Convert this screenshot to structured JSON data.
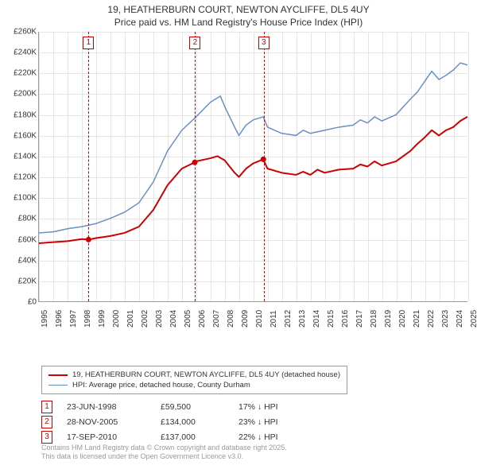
{
  "title_line1": "19, HEATHERBURN COURT, NEWTON AYCLIFFE, DL5 4UY",
  "title_line2": "Price paid vs. HM Land Registry's House Price Index (HPI)",
  "chart": {
    "type": "line",
    "background_color": "#ffffff",
    "grid_color": "#e5e5e5",
    "axis_color": "#999999",
    "text_color": "#333333",
    "label_fontsize": 10,
    "x": {
      "min": 1995,
      "max": 2025,
      "ticks": [
        1995,
        1996,
        1997,
        1998,
        1999,
        2000,
        2001,
        2002,
        2003,
        2004,
        2005,
        2006,
        2007,
        2008,
        2009,
        2010,
        2011,
        2012,
        2013,
        2014,
        2015,
        2016,
        2017,
        2018,
        2019,
        2020,
        2021,
        2022,
        2023,
        2024,
        2025
      ]
    },
    "y": {
      "min": 0,
      "max": 260000,
      "step": 20000,
      "format_prefix": "£",
      "format_suffix": "K",
      "format_divisor": 1000,
      "labels": [
        "£0",
        "£20K",
        "£40K",
        "£60K",
        "£80K",
        "£100K",
        "£120K",
        "£140K",
        "£160K",
        "£180K",
        "£200K",
        "£220K",
        "£240K",
        "£260K"
      ]
    },
    "series": [
      {
        "name": "19, HEATHERBURN COURT, NEWTON AYCLIFFE, DL5 4UY (detached house)",
        "color": "#cc0000",
        "line_width": 2,
        "points": [
          [
            1995,
            56000
          ],
          [
            1996,
            57000
          ],
          [
            1997,
            58000
          ],
          [
            1998,
            60000
          ],
          [
            1998.5,
            59500
          ],
          [
            1999,
            61000
          ],
          [
            2000,
            63000
          ],
          [
            2001,
            66000
          ],
          [
            2002,
            72000
          ],
          [
            2003,
            88000
          ],
          [
            2004,
            112000
          ],
          [
            2005,
            128000
          ],
          [
            2005.9,
            134000
          ],
          [
            2006,
            135000
          ],
          [
            2007,
            138000
          ],
          [
            2007.5,
            140000
          ],
          [
            2008,
            136000
          ],
          [
            2008.7,
            124000
          ],
          [
            2009,
            120000
          ],
          [
            2009.5,
            128000
          ],
          [
            2010,
            133000
          ],
          [
            2010.7,
            137000
          ],
          [
            2011,
            128000
          ],
          [
            2012,
            124000
          ],
          [
            2013,
            122000
          ],
          [
            2013.5,
            125000
          ],
          [
            2014,
            122000
          ],
          [
            2014.5,
            127000
          ],
          [
            2015,
            124000
          ],
          [
            2016,
            127000
          ],
          [
            2017,
            128000
          ],
          [
            2017.5,
            132000
          ],
          [
            2018,
            130000
          ],
          [
            2018.5,
            135000
          ],
          [
            2019,
            131000
          ],
          [
            2020,
            135000
          ],
          [
            2021,
            145000
          ],
          [
            2021.5,
            152000
          ],
          [
            2022,
            158000
          ],
          [
            2022.5,
            165000
          ],
          [
            2023,
            160000
          ],
          [
            2023.5,
            165000
          ],
          [
            2024,
            168000
          ],
          [
            2024.5,
            174000
          ],
          [
            2025,
            178000
          ]
        ]
      },
      {
        "name": "HPI: Average price, detached house, County Durham",
        "color": "#6a8fc4",
        "line_width": 1.5,
        "points": [
          [
            1995,
            66000
          ],
          [
            1996,
            67000
          ],
          [
            1997,
            70000
          ],
          [
            1998,
            72000
          ],
          [
            1999,
            75000
          ],
          [
            2000,
            80000
          ],
          [
            2001,
            86000
          ],
          [
            2002,
            95000
          ],
          [
            2003,
            115000
          ],
          [
            2004,
            145000
          ],
          [
            2005,
            165000
          ],
          [
            2006,
            178000
          ],
          [
            2007,
            192000
          ],
          [
            2007.7,
            198000
          ],
          [
            2008,
            188000
          ],
          [
            2008.7,
            168000
          ],
          [
            2009,
            160000
          ],
          [
            2009.5,
            170000
          ],
          [
            2010,
            175000
          ],
          [
            2010.7,
            178000
          ],
          [
            2011,
            168000
          ],
          [
            2012,
            162000
          ],
          [
            2013,
            160000
          ],
          [
            2013.5,
            165000
          ],
          [
            2014,
            162000
          ],
          [
            2015,
            165000
          ],
          [
            2016,
            168000
          ],
          [
            2017,
            170000
          ],
          [
            2017.5,
            175000
          ],
          [
            2018,
            172000
          ],
          [
            2018.5,
            178000
          ],
          [
            2019,
            174000
          ],
          [
            2020,
            180000
          ],
          [
            2021,
            195000
          ],
          [
            2021.5,
            202000
          ],
          [
            2022,
            212000
          ],
          [
            2022.5,
            222000
          ],
          [
            2023,
            214000
          ],
          [
            2023.5,
            218000
          ],
          [
            2024,
            223000
          ],
          [
            2024.5,
            230000
          ],
          [
            2025,
            228000
          ]
        ]
      }
    ],
    "events": [
      {
        "num": "1",
        "x": 1998.47,
        "marker_y": 59500
      },
      {
        "num": "2",
        "x": 2005.91,
        "marker_y": 134000
      },
      {
        "num": "3",
        "x": 2010.71,
        "marker_y": 137000
      }
    ],
    "event_line_color": "#cc0000",
    "event_box_border": "#cc0000",
    "marker_color": "#cc0000",
    "marker_radius": 3.5
  },
  "legend": [
    {
      "label": "19, HEATHERBURN COURT, NEWTON AYCLIFFE, DL5 4UY (detached house)",
      "color": "#cc0000",
      "width": 2
    },
    {
      "label": "HPI: Average price, detached house, County Durham",
      "color": "#6a8fc4",
      "width": 1.5
    }
  ],
  "events_table": [
    {
      "num": "1",
      "date": "23-JUN-1998",
      "price": "£59,500",
      "diff": "17% ↓ HPI"
    },
    {
      "num": "2",
      "date": "28-NOV-2005",
      "price": "£134,000",
      "diff": "23% ↓ HPI"
    },
    {
      "num": "3",
      "date": "17-SEP-2010",
      "price": "£137,000",
      "diff": "22% ↓ HPI"
    }
  ],
  "footer_line1": "Contains HM Land Registry data © Crown copyright and database right 2025.",
  "footer_line2": "This data is licensed under the Open Government Licence v3.0."
}
